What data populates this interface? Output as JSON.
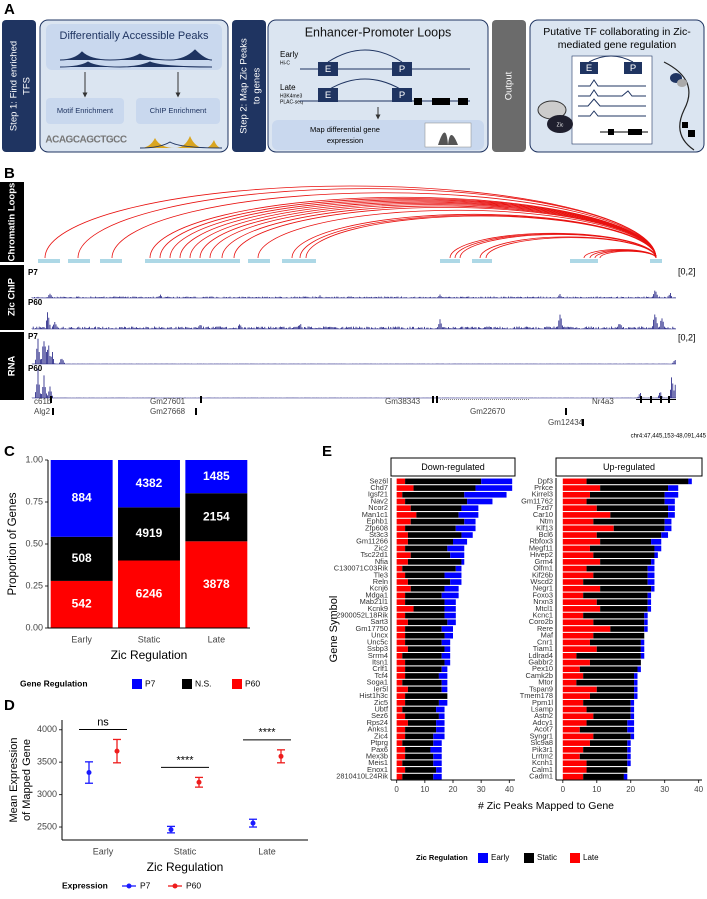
{
  "panel_a": {
    "label": "A",
    "step1": [
      "Step 1: Find enriched",
      "TFS"
    ],
    "peaks_title": "Differentially Accessible Peaks",
    "motif": "Motif Enrichment",
    "chip": "ChIP Enrichment",
    "motif_logo": "ACAGCAGCTGCC",
    "step2": [
      "Step 2: Map Zic Peaks",
      "to genes"
    ],
    "loops_title": "Enhancer-Promoter Loops",
    "early": "Early",
    "early_assay": "Hi-C",
    "late": "Late",
    "late_assay": [
      "H3K4me3",
      "PLAC-seq"
    ],
    "enhancer": "E",
    "promoter": "P",
    "map_lines": [
      "Map differential gene",
      "expression"
    ],
    "output": "Output",
    "output_title": [
      "Putative TF collaborating in Zic-",
      "mediated gene regulation"
    ],
    "zic": "Zic"
  },
  "panel_b": {
    "label": "B",
    "tracks": [
      "Chromatin Loops",
      "Zic ChIP",
      "RNA"
    ],
    "samples": [
      "P7",
      "P60"
    ],
    "scale": "[0,2]",
    "genes": [
      "c61b",
      "Alg2",
      "Gm27601",
      "Gm27668",
      "Gm38343",
      "Gm22670",
      "Nr4a3",
      "Gm12434"
    ],
    "coordinates": "chr4:47,445,153-48,091,445"
  },
  "chart_data": [
    {
      "type": "bar",
      "label": "C",
      "stacking": "percent",
      "categories": [
        "Early",
        "Static",
        "Late"
      ],
      "series": [
        {
          "name": "P7",
          "color": "#0000ff",
          "values": [
            884,
            4382,
            1485
          ]
        },
        {
          "name": "N.S.",
          "color": "#000000",
          "values": [
            508,
            4919,
            2154
          ]
        },
        {
          "name": "P60",
          "color": "#ff0000",
          "values": [
            542,
            6246,
            3878
          ]
        }
      ],
      "ylim": [
        0,
        1
      ],
      "yticks": [
        {
          "value": 0,
          "label": "0.00"
        },
        {
          "value": 0.25,
          "label": "0.25"
        },
        {
          "value": 0.5,
          "label": "0.50"
        },
        {
          "value": 0.75,
          "label": "0.75"
        },
        {
          "value": 1,
          "label": "1.00"
        }
      ],
      "ylabel": "Proportion of Genes",
      "xlabel": "Zic Regulation",
      "legend_title": "Gene Regulation"
    },
    {
      "type": "errorbar",
      "label": "D",
      "categories": [
        "Early",
        "Static",
        "Late"
      ],
      "series": [
        {
          "name": "P7",
          "color": "#1a1aff",
          "values": [
            3340,
            2460,
            2560
          ],
          "errors": [
            165,
            50,
            60
          ]
        },
        {
          "name": "P60",
          "color": "#ee1c1c",
          "values": [
            3670,
            3190,
            3590
          ],
          "errors": [
            180,
            75,
            100
          ]
        }
      ],
      "ylim": [
        2300,
        4150
      ],
      "yticks": [
        2500,
        3000,
        3500,
        4000
      ],
      "ylabel": [
        "Mean Expression",
        "of Mapped Gene"
      ],
      "xlabel": "Zic Regulation",
      "legend_title": "Expression",
      "annotations": [
        "ns",
        "****",
        "****"
      ]
    },
    {
      "type": "bar",
      "label": "E",
      "orientation": "horizontal",
      "stacking": "stacked",
      "series": [
        {
          "name": "Early",
          "color": "#0000ff"
        },
        {
          "name": "Static",
          "color": "#000000"
        },
        {
          "name": "Late",
          "color": "#ff0000"
        }
      ],
      "xlabel": "# Zic Peaks Mapped to Gene",
      "ylabel": "Gene Symbol",
      "legend_title": "Zic Regulation",
      "facets": [
        {
          "title": "Down-regulated",
          "xlim": [
            -2,
            42
          ],
          "xticks": [
            0,
            10,
            20,
            30,
            40
          ],
          "categories": [
            "Sez6l",
            "Chd7",
            "Igsf21",
            "Nav2",
            "Ncor2",
            "Man1c1",
            "Ephb1",
            "Zfp608",
            "St3c3",
            "Gm11266",
            "Zic2",
            "Tsc22d1",
            "Nfia",
            "C130071C03Rik",
            "Tle3",
            "Reln",
            "Kcnj6",
            "Mdga1",
            "Mab21l1",
            "Kcnk9",
            "2900052L18Rik",
            "Sart3",
            "Gm17750",
            "Uncx",
            "Unc5c",
            "Ssbp3",
            "Srrm4",
            "Itsn1",
            "Crlf1",
            "Tcf4",
            "Soga1",
            "Ier5l",
            "Hist1h3c",
            "Zic5",
            "Ubtf",
            "Sez6",
            "Rps24",
            "Anks1",
            "Zic4",
            "Ptprg",
            "Pax6",
            "Mex3b",
            "Meis1",
            "Enox1",
            "2810410L24Rik"
          ],
          "series": [
            {
              "values": [
                11,
                13,
                15,
                9,
                6,
                7,
                4,
                7,
                4,
                5,
                6,
                5,
                1,
                2,
                6,
                4,
                5,
                6,
                4,
                4,
                4,
                3,
                4,
                3,
                3,
                2,
                3,
                2,
                2,
                3,
                2,
                2,
                0,
                3,
                3,
                2,
                3,
                3,
                4,
                3,
                4,
                3,
                3,
                2,
                3
              ]
            },
            {
              "values": [
                27,
                22,
                22,
                22,
                18,
                15,
                19,
                18,
                19,
                16,
                15,
                14,
                19,
                19,
                14,
                15,
                12,
                13,
                14,
                11,
                14,
                14,
                13,
                14,
                13,
                13,
                14,
                14,
                13,
                12,
                14,
                12,
                15,
                12,
                12,
                12,
                10,
                11,
                10,
                11,
                9,
                10,
                11,
                11,
                11
              ]
            },
            {
              "values": [
                3,
                6,
                2,
                3,
                5,
                7,
                5,
                3,
                4,
                4,
                3,
                5,
                4,
                2,
                3,
                4,
                5,
                3,
                3,
                6,
                3,
                4,
                3,
                3,
                3,
                4,
                2,
                3,
                3,
                3,
                2,
                4,
                3,
                3,
                2,
                3,
                4,
                3,
                3,
                2,
                3,
                3,
                2,
                3,
                2
              ]
            }
          ]
        },
        {
          "title": "Up-regulated",
          "xlim": [
            -2,
            41
          ],
          "xticks": [
            0,
            10,
            20,
            30,
            40
          ],
          "categories": [
            "Dpf3",
            "Prkce",
            "Kirrel3",
            "Gm11762",
            "Fzd7",
            "Car10",
            "Ntm",
            "Klf13",
            "Bcl6",
            "Rbfox3",
            "Megf11",
            "Hivep2",
            "Grm4",
            "Olfm1",
            "Kif26b",
            "Wscd2",
            "Negr1",
            "Foxo3",
            "Nrxn3",
            "Mtcl1",
            "Kcnc1",
            "Coro2b",
            "Rere",
            "Maf",
            "Cnr1",
            "Tiam1",
            "Ldlrad4",
            "Gabbr2",
            "Pex10",
            "Camk2b",
            "Mtor",
            "Tspan9",
            "Tmem178",
            "Ppm1l",
            "Lsamp",
            "Astn2",
            "Adcy1",
            "Acot7",
            "Syngr1",
            "Slc9a8",
            "Pik3r1",
            "Lrrtm2",
            "Kcnh1",
            "Calm1",
            "Cadm1"
          ],
          "series": [
            {
              "values": [
                1,
                3,
                4,
                3,
                2,
                2,
                2,
                2,
                2,
                3,
                2,
                1,
                1,
                2,
                2,
                2,
                1,
                1,
                1,
                1,
                1,
                1,
                1,
                0,
                1,
                1,
                1,
                0,
                1,
                1,
                1,
                1,
                1,
                1,
                1,
                1,
                2,
                2,
                1,
                1,
                1,
                1,
                1,
                0,
                1
              ]
            },
            {
              "values": [
                30,
                20,
                22,
                23,
                21,
                17,
                21,
                15,
                19,
                15,
                19,
                18,
                15,
                18,
                16,
                19,
                15,
                19,
                15,
                14,
                18,
                15,
                10,
                15,
                15,
                13,
                19,
                15,
                17,
                15,
                17,
                11,
                13,
                14,
                13,
                11,
                12,
                14,
                11,
                11,
                13,
                14,
                12,
                12,
                12
              ]
            },
            {
              "values": [
                7,
                11,
                8,
                7,
                10,
                14,
                9,
                15,
                10,
                11,
                8,
                9,
                11,
                7,
                9,
                6,
                11,
                6,
                10,
                11,
                6,
                9,
                14,
                9,
                8,
                10,
                4,
                8,
                5,
                6,
                4,
                10,
                8,
                6,
                7,
                9,
                7,
                5,
                9,
                8,
                6,
                5,
                7,
                7,
                6
              ]
            }
          ]
        }
      ]
    }
  ]
}
